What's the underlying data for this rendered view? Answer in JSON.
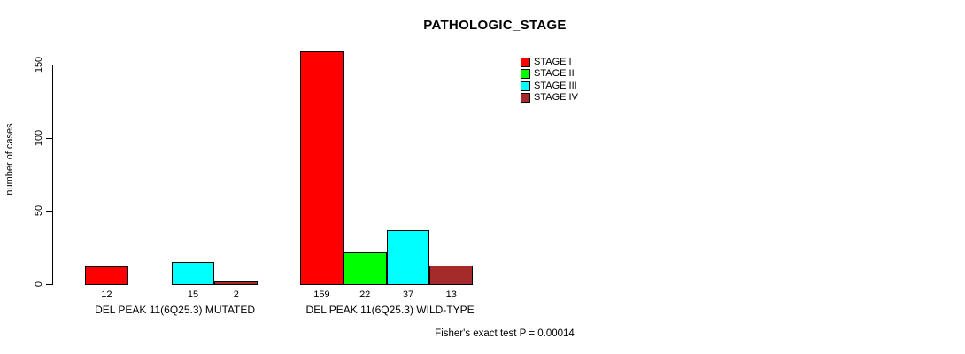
{
  "chart_data": {
    "type": "bar",
    "title": "PATHOLOGIC_STAGE",
    "xlabel": "",
    "ylabel": "number of cases",
    "categories": [
      "DEL PEAK 11(6Q25.3) MUTATED",
      "DEL PEAK 11(6Q25.3) WILD-TYPE"
    ],
    "series": [
      {
        "name": "STAGE I",
        "color": "#ff0000",
        "values": [
          12,
          159
        ]
      },
      {
        "name": "STAGE II",
        "color": "#00ff00",
        "values": [
          0,
          22
        ]
      },
      {
        "name": "STAGE III",
        "color": "#00ffff",
        "values": [
          15,
          37
        ]
      },
      {
        "name": "STAGE IV",
        "color": "#a52a2a",
        "values": [
          2,
          13
        ]
      }
    ],
    "yticks": [
      0,
      50,
      100,
      150
    ],
    "ylim": [
      0,
      165
    ],
    "grid": false,
    "legend_position": "top-right",
    "legend_labels": [
      "STAGE I",
      "STAGE II",
      "STAGE III",
      "STAGE IV"
    ],
    "bar_value_labels_shown": true,
    "axis_color": "#000000",
    "annotation": "Fisher's exact test P = 0.00014"
  }
}
